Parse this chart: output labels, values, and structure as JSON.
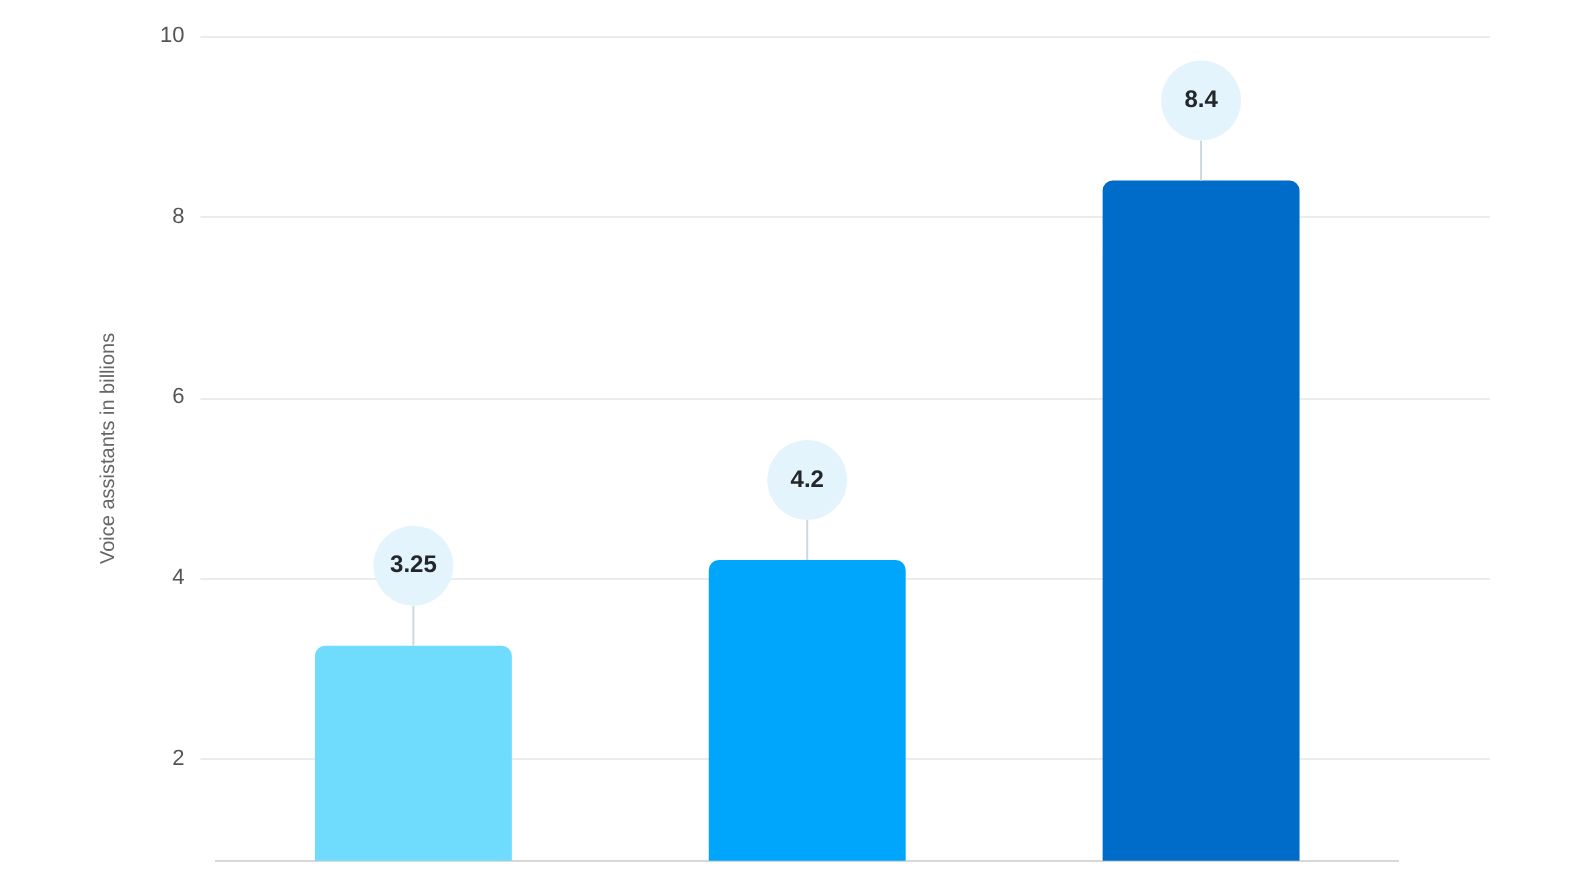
{
  "chart_data": {
    "type": "bar",
    "ylabel": "Voice assistants in billions",
    "categories": [
      null,
      null,
      null
    ],
    "values": [
      3.25,
      4.2,
      8.4
    ],
    "colors": [
      "#6fdcfe",
      "#00a6fb",
      "#006cc9"
    ],
    "ylim": [
      0.87,
      10
    ],
    "yticks": [
      2,
      4,
      6,
      8,
      10
    ],
    "grid": "y",
    "data_labels": true,
    "tick_labels": "y",
    "legend": false
  }
}
